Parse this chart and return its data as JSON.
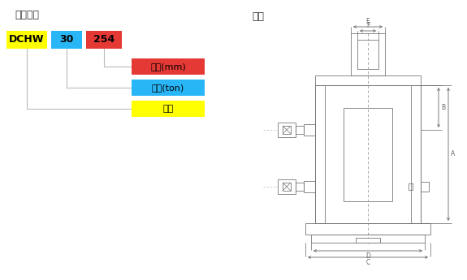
{
  "title_left": "型号说明",
  "title_right": "尺寸",
  "box_dchw": {
    "label": "DCHW",
    "color": "#FFFF00",
    "text_color": "#000000"
  },
  "box_30": {
    "label": "30",
    "color": "#29B6F6",
    "text_color": "#000000"
  },
  "box_254": {
    "label": "254",
    "color": "#E53935",
    "text_color": "#000000"
  },
  "label_red": {
    "label": "行程(mm)",
    "color": "#E53935",
    "text_color": "#000000"
  },
  "label_blue": {
    "label": "载荷(ton)",
    "color": "#29B6F6",
    "text_color": "#000000"
  },
  "label_yellow": {
    "label": "型号",
    "color": "#FFFF00",
    "text_color": "#000000"
  },
  "bg_color": "#FFFFFF",
  "line_color": "#BBBBBB",
  "dim_color": "#666666",
  "drawing_line_color": "#777777"
}
